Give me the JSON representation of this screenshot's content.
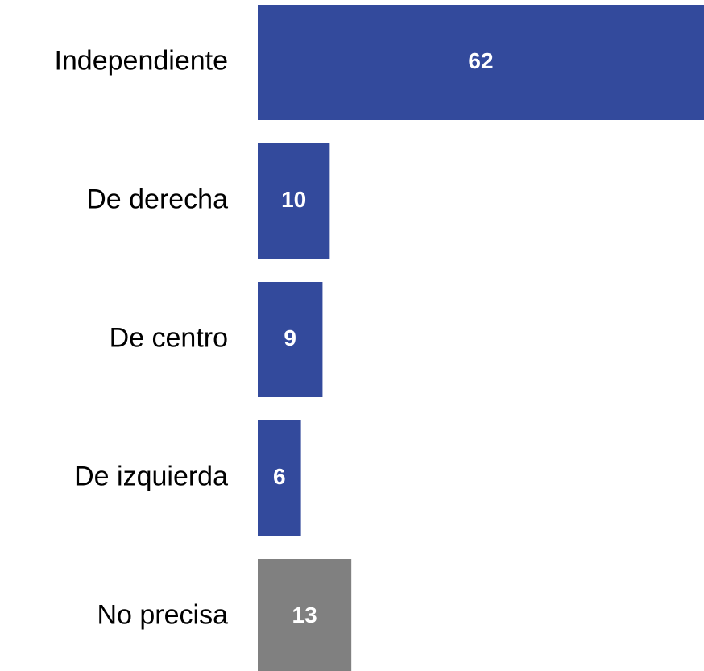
{
  "chart_data": {
    "type": "bar",
    "orientation": "horizontal",
    "categories": [
      "Independiente",
      "De derecha",
      "De centro",
      "De izquierda",
      "No precisa"
    ],
    "values": [
      62,
      10,
      9,
      6,
      13
    ],
    "colors": [
      "#334a9c",
      "#334a9c",
      "#334a9c",
      "#334a9c",
      "#808080"
    ]
  }
}
